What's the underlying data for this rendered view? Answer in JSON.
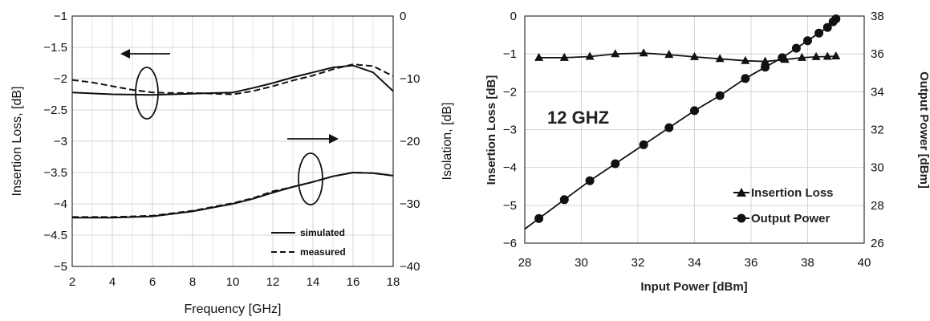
{
  "chart_data": [
    {
      "type": "line",
      "xlabel": "Frequency [GHz]",
      "ylabel": "Insertion Loss, [dB]",
      "y2label": "Isolation, [dB]",
      "xlim": [
        2,
        18
      ],
      "ylim": [
        -5,
        -1
      ],
      "y2lim": [
        -40,
        0
      ],
      "xticks": [
        2,
        4,
        6,
        8,
        10,
        12,
        14,
        16,
        18
      ],
      "yticks": [
        -1,
        -1.5,
        -2,
        -2.5,
        -3,
        -3.5,
        -4,
        -4.5,
        -5
      ],
      "y2ticks": [
        0,
        -10,
        -20,
        -30,
        -40
      ],
      "grid": true,
      "legend": [
        {
          "label": "simulated",
          "style": "solid"
        },
        {
          "label": "measured",
          "style": "dashed"
        }
      ],
      "legend_position": "bottom-right",
      "series": [
        {
          "label": "simulated",
          "axis": "left",
          "x": [
            2,
            4,
            6,
            8,
            10,
            11,
            12,
            13,
            14,
            15,
            16,
            17,
            18
          ],
          "y": [
            -2.22,
            -2.25,
            -2.26,
            -2.24,
            -2.22,
            -2.15,
            -2.07,
            -1.98,
            -1.9,
            -1.82,
            -1.79,
            -1.9,
            -2.2
          ]
        },
        {
          "label": "measured",
          "axis": "left",
          "x": [
            2,
            3,
            4,
            5,
            6,
            7,
            8,
            9,
            10,
            11,
            12,
            13,
            14,
            15,
            16,
            17,
            18
          ],
          "y": [
            -2.02,
            -2.06,
            -2.12,
            -2.18,
            -2.22,
            -2.23,
            -2.23,
            -2.24,
            -2.25,
            -2.2,
            -2.12,
            -2.03,
            -1.95,
            -1.85,
            -1.77,
            -1.8,
            -1.96
          ]
        },
        {
          "label": "simulated",
          "axis": "right",
          "x": [
            2,
            4,
            6,
            8,
            10,
            11,
            12,
            13,
            14,
            15,
            16,
            17,
            18
          ],
          "y": [
            -32.2,
            -32.2,
            -32.0,
            -31.2,
            -30.0,
            -29.2,
            -28.2,
            -27.3,
            -26.5,
            -25.6,
            -25.0,
            -25.1,
            -25.5
          ]
        },
        {
          "label": "measured",
          "axis": "right",
          "x": [
            2,
            4,
            6,
            8,
            10,
            11,
            12,
            13,
            14,
            15,
            16,
            17,
            18
          ],
          "y": [
            -32.1,
            -32.1,
            -31.9,
            -31.1,
            -29.9,
            -29.1,
            -28.0,
            -27.3,
            -26.5,
            -25.6,
            -25.0,
            -25.1,
            -25.5
          ]
        }
      ],
      "annotations": [
        {
          "type": "arrow",
          "direction": "left",
          "refers_to": "left axis"
        },
        {
          "type": "arrow",
          "direction": "right",
          "refers_to": "right axis"
        }
      ]
    },
    {
      "type": "line",
      "xlabel": "Input Power [dBm]",
      "ylabel": "Insertion Loss [dB]",
      "y2label": "Output Power [dBm]",
      "xlim": [
        28,
        40
      ],
      "ylim": [
        -6,
        0
      ],
      "y2lim": [
        26,
        38
      ],
      "xticks": [
        28,
        30,
        32,
        34,
        36,
        38,
        40
      ],
      "yticks": [
        0,
        -1,
        -2,
        -3,
        -4,
        -5,
        -6
      ],
      "y2ticks": [
        38,
        36,
        34,
        32,
        30,
        28,
        26
      ],
      "grid": true,
      "annotation_text": "12 GHZ",
      "legend": [
        {
          "label": "Insertion Loss",
          "marker": "triangle"
        },
        {
          "label": "Output Power",
          "marker": "circle"
        }
      ],
      "legend_position": "bottom-right",
      "series": [
        {
          "label": "Insertion Loss",
          "axis": "left",
          "marker": "triangle",
          "x": [
            28.5,
            29.4,
            30.3,
            31.2,
            32.2,
            33.1,
            34.0,
            34.9,
            35.8,
            36.5,
            37.2,
            37.8,
            38.3,
            38.7,
            39.0
          ],
          "y": [
            -1.1,
            -1.1,
            -1.07,
            -1.0,
            -0.98,
            -1.02,
            -1.08,
            -1.13,
            -1.18,
            -1.2,
            -1.15,
            -1.1,
            -1.08,
            -1.07,
            -1.06
          ]
        },
        {
          "label": "Output Power",
          "axis": "right",
          "marker": "circle",
          "x": [
            28.5,
            29.4,
            30.3,
            31.2,
            32.2,
            33.1,
            34.0,
            34.9,
            35.8,
            36.5,
            37.1,
            37.6,
            38.0,
            38.4,
            38.7,
            38.9,
            39.0
          ],
          "y": [
            27.3,
            28.3,
            29.3,
            30.2,
            31.2,
            32.1,
            33.0,
            33.8,
            34.7,
            35.3,
            35.8,
            36.3,
            36.7,
            37.1,
            37.4,
            37.7,
            37.85
          ]
        }
      ]
    }
  ]
}
